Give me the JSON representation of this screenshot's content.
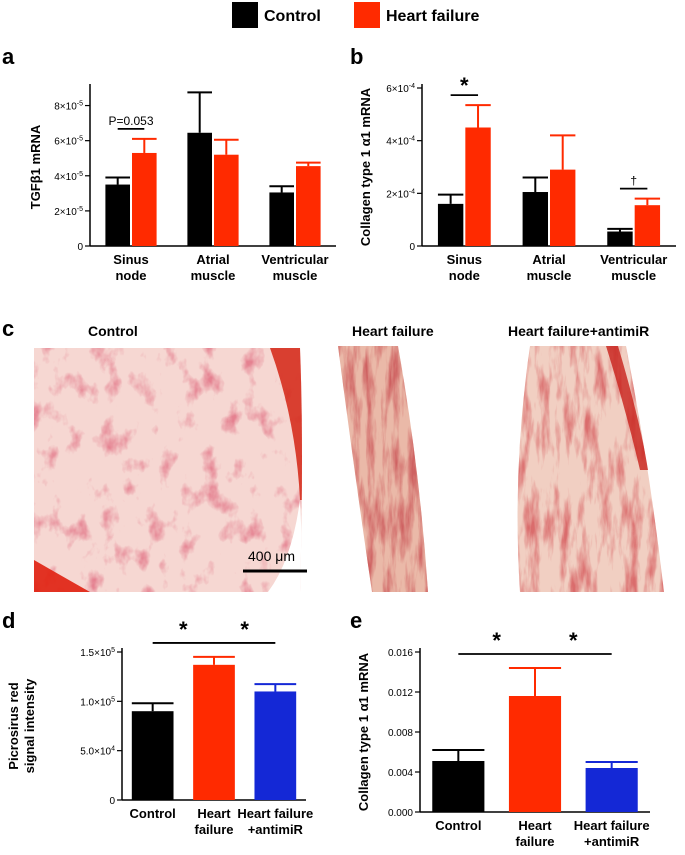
{
  "legend": [
    {
      "label": "Control",
      "color": "#000000"
    },
    {
      "label": "Heart failure",
      "color": "#ff2a00"
    }
  ],
  "colors": {
    "control": "#000000",
    "hf": "#ff2a00",
    "antimir": "#1428d6"
  },
  "chart_data": [
    {
      "panel": "a",
      "type": "bar",
      "ylabel": "TGFβ1 mRNA",
      "ylim": [
        0,
        9e-05
      ],
      "yticks": [
        0,
        2e-05,
        4e-05,
        6e-05,
        8e-05
      ],
      "ytick_labels": [
        [
          "0",
          ""
        ],
        [
          "2×10",
          "-5"
        ],
        [
          "4×10",
          "-5"
        ],
        [
          "6×10",
          "-5"
        ],
        [
          "8×10",
          "-5"
        ]
      ],
      "categories": [
        [
          "Sinus",
          "node"
        ],
        [
          "Atrial",
          "muscle"
        ],
        [
          "Ventricular",
          "muscle"
        ]
      ],
      "series": [
        {
          "name": "Control",
          "values": [
            3.5e-05,
            6.45e-05,
            3.05e-05
          ],
          "errors": [
            4e-06,
            2.3e-05,
            3.5e-06
          ]
        },
        {
          "name": "Heart failure",
          "values": [
            5.3e-05,
            5.2e-05,
            4.55e-05
          ],
          "errors": [
            8e-06,
            8.5e-06,
            2e-06
          ]
        }
      ],
      "annotations": [
        {
          "text": "P=0.053",
          "category": 0
        }
      ]
    },
    {
      "panel": "b",
      "type": "bar",
      "ylabel": "Collagen type 1 α1 mRNA",
      "ylim": [
        0,
        0.0006
      ],
      "yticks": [
        0,
        0.0002,
        0.0004,
        0.0006
      ],
      "ytick_labels": [
        [
          "0",
          ""
        ],
        [
          "2×10",
          "-4"
        ],
        [
          "4×10",
          "-4"
        ],
        [
          "6×10",
          "-4"
        ]
      ],
      "categories": [
        [
          "Sinus",
          "node"
        ],
        [
          "Atrial",
          "muscle"
        ],
        [
          "Ventricular",
          "muscle"
        ]
      ],
      "series": [
        {
          "name": "Control",
          "values": [
            0.00016,
            0.000205,
            5.5e-05
          ],
          "errors": [
            3.5e-05,
            5.5e-05,
            1e-05
          ]
        },
        {
          "name": "Heart failure",
          "values": [
            0.00045,
            0.00029,
            0.000155
          ],
          "errors": [
            8.5e-05,
            0.00013,
            2.5e-05
          ]
        }
      ],
      "annotations": [
        {
          "text": "*",
          "category": 0
        },
        {
          "text": "†",
          "category": 2
        }
      ]
    },
    {
      "panel": "d",
      "type": "bar",
      "ylabel": [
        "Picrosirus red",
        "signal intensity"
      ],
      "ylim": [
        0,
        150000.0
      ],
      "yticks": [
        0,
        50000.0,
        100000.0,
        150000.0
      ],
      "ytick_labels": [
        [
          "0",
          ""
        ],
        [
          "5.0×10",
          "4"
        ],
        [
          "1.0×10",
          "5"
        ],
        [
          "1.5×10",
          "5"
        ]
      ],
      "categories": [
        [
          "Control"
        ],
        [
          "Heart",
          "failure"
        ],
        [
          "Heart failure",
          "+antimiR"
        ]
      ],
      "values": [
        90000.0,
        137000.0,
        110000.0
      ],
      "errors": [
        8000.0,
        8000.0,
        7500.0
      ],
      "bar_colors": [
        "#000000",
        "#ff2a00",
        "#1428d6"
      ],
      "significance": [
        {
          "text": "*",
          "from": 0,
          "to": 1
        },
        {
          "text": "*",
          "from": 1,
          "to": 2
        }
      ]
    },
    {
      "panel": "e",
      "type": "bar",
      "ylabel": "Collagen type 1 α1 mRNA",
      "ylim": [
        0,
        0.016
      ],
      "yticks": [
        0,
        0.004,
        0.008,
        0.012,
        0.016
      ],
      "ytick_labels": [
        [
          "0.000",
          ""
        ],
        [
          "0.004",
          ""
        ],
        [
          "0.008",
          ""
        ],
        [
          "0.012",
          ""
        ],
        [
          "0.016",
          ""
        ]
      ],
      "categories": [
        [
          "Control"
        ],
        [
          "Heart",
          "failure"
        ],
        [
          "Heart failure",
          "+antimiR"
        ]
      ],
      "values": [
        0.0051,
        0.0116,
        0.0044
      ],
      "errors": [
        0.0011,
        0.0028,
        0.0006
      ],
      "bar_colors": [
        "#000000",
        "#ff2a00",
        "#1428d6"
      ],
      "significance": [
        {
          "text": "*",
          "from": 0,
          "to": 1
        },
        {
          "text": "*",
          "from": 1,
          "to": 2
        }
      ]
    }
  ],
  "micrographs": {
    "panel": "c",
    "titles": [
      "Control",
      "Heart failure",
      "Heart failure+antimiR"
    ],
    "scale_bar_label": "400 μm"
  }
}
